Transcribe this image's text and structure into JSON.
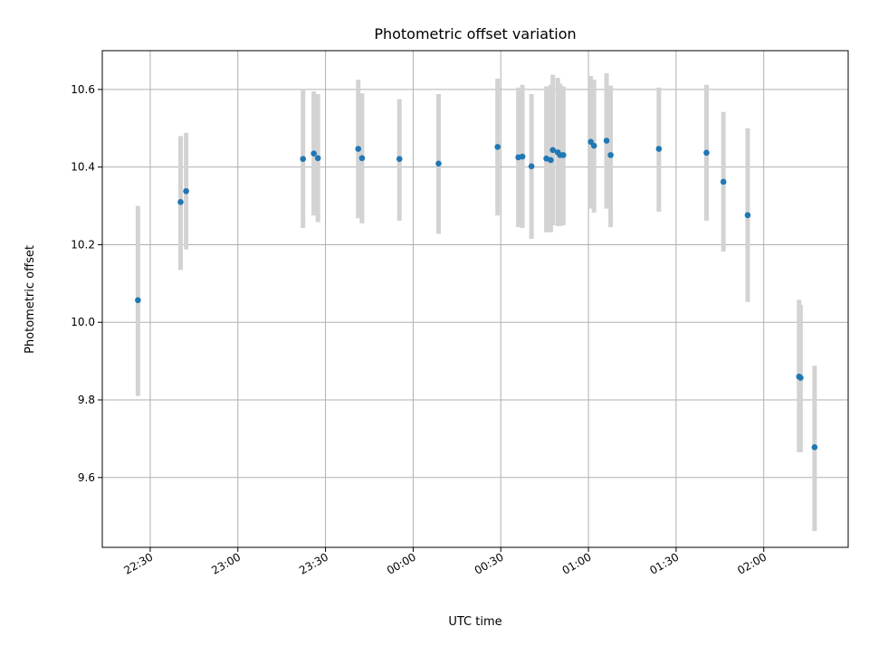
{
  "chart_data": {
    "type": "scatter",
    "title": "Photometric offset variation",
    "xlabel": "UTC time",
    "ylabel": "Photometric offset",
    "x_ticks": [
      {
        "value": 30,
        "label": "22:30"
      },
      {
        "value": 60,
        "label": "23:00"
      },
      {
        "value": 90,
        "label": "23:30"
      },
      {
        "value": 120,
        "label": "00:00"
      },
      {
        "value": 150,
        "label": "00:30"
      },
      {
        "value": 180,
        "label": "01:00"
      },
      {
        "value": 210,
        "label": "01:30"
      },
      {
        "value": 240,
        "label": "02:00"
      }
    ],
    "y_ticks": [
      9.6,
      9.8,
      10.0,
      10.2,
      10.4,
      10.6
    ],
    "xlim": [
      13.6,
      268.9
    ],
    "ylim": [
      9.42,
      10.7
    ],
    "grid": true,
    "marker_color": "#1f77b4",
    "errorbar_color": "#d3d3d3",
    "points": [
      {
        "x": 25.8,
        "y": 10.057,
        "lo": 9.81,
        "hi": 10.3
      },
      {
        "x": 40.4,
        "y": 10.31,
        "lo": 10.135,
        "hi": 10.48
      },
      {
        "x": 42.3,
        "y": 10.338,
        "lo": 10.188,
        "hi": 10.488
      },
      {
        "x": 82.3,
        "y": 10.421,
        "lo": 10.243,
        "hi": 10.6
      },
      {
        "x": 86.0,
        "y": 10.435,
        "lo": 10.275,
        "hi": 10.595
      },
      {
        "x": 87.4,
        "y": 10.423,
        "lo": 10.258,
        "hi": 10.588
      },
      {
        "x": 101.2,
        "y": 10.447,
        "lo": 10.268,
        "hi": 10.625
      },
      {
        "x": 102.5,
        "y": 10.423,
        "lo": 10.255,
        "hi": 10.59
      },
      {
        "x": 115.3,
        "y": 10.421,
        "lo": 10.262,
        "hi": 10.575
      },
      {
        "x": 128.7,
        "y": 10.409,
        "lo": 10.228,
        "hi": 10.588
      },
      {
        "x": 148.9,
        "y": 10.452,
        "lo": 10.275,
        "hi": 10.628
      },
      {
        "x": 156.0,
        "y": 10.425,
        "lo": 10.245,
        "hi": 10.605
      },
      {
        "x": 157.4,
        "y": 10.427,
        "lo": 10.243,
        "hi": 10.612
      },
      {
        "x": 160.5,
        "y": 10.402,
        "lo": 10.215,
        "hi": 10.588
      },
      {
        "x": 165.6,
        "y": 10.422,
        "lo": 10.232,
        "hi": 10.608
      },
      {
        "x": 167.1,
        "y": 10.418,
        "lo": 10.232,
        "hi": 10.612
      },
      {
        "x": 167.8,
        "y": 10.444,
        "lo": 10.25,
        "hi": 10.638
      },
      {
        "x": 169.5,
        "y": 10.438,
        "lo": 10.248,
        "hi": 10.63
      },
      {
        "x": 170.3,
        "y": 10.431,
        "lo": 10.248,
        "hi": 10.615
      },
      {
        "x": 171.4,
        "y": 10.431,
        "lo": 10.25,
        "hi": 10.608
      },
      {
        "x": 180.8,
        "y": 10.465,
        "lo": 10.293,
        "hi": 10.635
      },
      {
        "x": 181.9,
        "y": 10.455,
        "lo": 10.283,
        "hi": 10.625
      },
      {
        "x": 186.2,
        "y": 10.468,
        "lo": 10.293,
        "hi": 10.642
      },
      {
        "x": 187.6,
        "y": 10.431,
        "lo": 10.245,
        "hi": 10.61
      },
      {
        "x": 204.1,
        "y": 10.447,
        "lo": 10.285,
        "hi": 10.605
      },
      {
        "x": 220.4,
        "y": 10.437,
        "lo": 10.262,
        "hi": 10.612
      },
      {
        "x": 226.2,
        "y": 10.362,
        "lo": 10.182,
        "hi": 10.542
      },
      {
        "x": 234.5,
        "y": 10.276,
        "lo": 10.052,
        "hi": 10.5
      },
      {
        "x": 252.1,
        "y": 9.86,
        "lo": 9.665,
        "hi": 10.058
      },
      {
        "x": 252.6,
        "y": 9.857,
        "lo": 9.665,
        "hi": 10.045
      },
      {
        "x": 257.4,
        "y": 9.678,
        "lo": 9.462,
        "hi": 9.888
      }
    ]
  }
}
